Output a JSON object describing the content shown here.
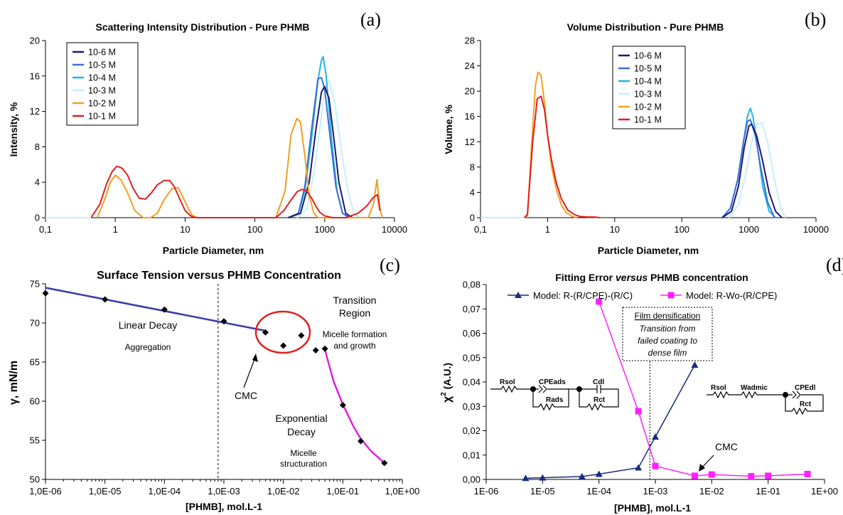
{
  "chart_data": [
    {
      "panel": "(a)",
      "type": "line",
      "title": "Scattering Intensity Distribution - Pure PHMB",
      "xlabel": "Particle Diameter, nm",
      "ylabel": "Intensity, %",
      "xscale": "log",
      "xlim": [
        0.1,
        10000
      ],
      "ylim": [
        0,
        20
      ],
      "xticks": [
        "0,1",
        "1",
        "10",
        "100",
        "1000",
        "10000"
      ],
      "yticks": [
        "0",
        "4",
        "8",
        "12",
        "16",
        "20"
      ],
      "legend_position": "top-left",
      "series": [
        {
          "name": "10-6 M",
          "color": "#1a1a6e",
          "x": [
            300,
            450,
            600,
            750,
            900,
            1000,
            1150,
            1350,
            1600,
            2000,
            2500
          ],
          "y": [
            0,
            0.5,
            4,
            10,
            14.2,
            14.8,
            13.5,
            9,
            4,
            0.5,
            0
          ]
        },
        {
          "name": "10-5 M",
          "color": "#3a6fd8",
          "x": [
            300,
            420,
            520,
            650,
            800,
            900,
            1000,
            1200,
            1450,
            1800,
            2300
          ],
          "y": [
            0,
            0.5,
            3.5,
            10,
            15.7,
            15.8,
            14.5,
            9,
            3.5,
            0.5,
            0
          ]
        },
        {
          "name": "10-4 M",
          "color": "#1fb4e6",
          "x": [
            300,
            420,
            520,
            650,
            800,
            900,
            950,
            1050,
            1250,
            1500,
            1800,
            2200
          ],
          "y": [
            0,
            0.5,
            3,
            9,
            15.5,
            17.8,
            18.2,
            16,
            9,
            3,
            0.5,
            0
          ]
        },
        {
          "name": "10-3 M",
          "color": "#c6efff",
          "x": [
            400,
            550,
            700,
            850,
            1000,
            1150,
            1400,
            1700,
            2100,
            2600,
            3200
          ],
          "y": [
            0,
            1,
            5,
            10,
            14.5,
            15.5,
            13,
            8,
            3.5,
            0.5,
            0
          ]
        },
        {
          "name": "10-2 M",
          "color": "#f0a020",
          "x": [
            0.55,
            0.7,
            0.85,
            1.0,
            1.2,
            1.5,
            1.9,
            2.5,
            3.2,
            4,
            5,
            6.5,
            8,
            10,
            12.5,
            15,
            200,
            270,
            330,
            400,
            450,
            520,
            600,
            700,
            800,
            900,
            4200,
            5000,
            5600,
            6200,
            6700
          ],
          "y": [
            0,
            2,
            4,
            4.8,
            4.3,
            2.8,
            0.8,
            0,
            0,
            0.5,
            2,
            3.3,
            3.4,
            1.8,
            0.3,
            0,
            0,
            3,
            9.4,
            11.2,
            10.8,
            7,
            2.5,
            0.5,
            0,
            0,
            0,
            1.5,
            4.3,
            1,
            0
          ]
        },
        {
          "name": "10-1 M",
          "color": "#e02020",
          "x": [
            0.45,
            0.6,
            0.75,
            0.9,
            1.05,
            1.25,
            1.5,
            1.8,
            2.2,
            2.7,
            3.3,
            4,
            5,
            6,
            7,
            8.5,
            10,
            12,
            14,
            16,
            200,
            260,
            330,
            400,
            470,
            550,
            650,
            750,
            850,
            1000,
            1300,
            2000,
            3000,
            4000,
            5000,
            5700,
            6200
          ],
          "y": [
            0,
            1.5,
            3.8,
            5.2,
            5.8,
            5.6,
            4.8,
            3.3,
            2.2,
            2.1,
            2.8,
            3.7,
            4.2,
            4.2,
            3.5,
            2,
            0.8,
            0.2,
            0,
            0,
            0,
            0.8,
            2,
            2.9,
            3.2,
            3,
            2.2,
            1.3,
            0.6,
            0.2,
            0,
            0,
            0.5,
            1.3,
            2.3,
            2.6,
            0.8
          ]
        }
      ]
    },
    {
      "panel": "(b)",
      "type": "line",
      "title": "Volume Distribution - Pure PHMB",
      "xlabel": "Particle Diameter, nm",
      "ylabel": "Volume, %",
      "xscale": "log",
      "xlim": [
        0.1,
        10000
      ],
      "ylim": [
        0,
        28
      ],
      "xticks": [
        "0,1",
        "1",
        "10",
        "100",
        "1000",
        "10000"
      ],
      "yticks": [
        "0",
        "4",
        "8",
        "12",
        "16",
        "20",
        "24",
        "28"
      ],
      "legend_position": "top-center",
      "series": [
        {
          "name": "10-6 M",
          "color": "#1a1a6e",
          "x": [
            400,
            550,
            700,
            850,
            1000,
            1100,
            1300,
            1600,
            2000,
            2500,
            3100
          ],
          "y": [
            0,
            1,
            5,
            11,
            14.5,
            14.8,
            13,
            9,
            4,
            1,
            0
          ]
        },
        {
          "name": "10-5 M",
          "color": "#3a6fd8",
          "x": [
            400,
            530,
            680,
            830,
            950,
            1050,
            1250,
            1500,
            1900,
            2400
          ],
          "y": [
            0,
            1.5,
            6,
            12,
            15.2,
            15.5,
            13,
            8,
            2.5,
            0
          ]
        },
        {
          "name": "10-4 M",
          "color": "#1fb4e6",
          "x": [
            400,
            530,
            680,
            830,
            950,
            1050,
            1150,
            1350,
            1600,
            2000,
            2500
          ],
          "y": [
            0,
            1.5,
            6,
            12,
            16,
            17.3,
            16,
            11,
            5,
            1,
            0
          ]
        },
        {
          "name": "10-3 M",
          "color": "#c6efff",
          "x": [
            500,
            700,
            900,
            1100,
            1300,
            1550,
            1900,
            2400,
            3000,
            3500
          ],
          "y": [
            0,
            2,
            7,
            12,
            14.8,
            15,
            12,
            6,
            1.5,
            0
          ]
        },
        {
          "name": "10-2 M",
          "color": "#f0a020",
          "x": [
            0.5,
            0.58,
            0.66,
            0.72,
            0.8,
            0.9,
            1.0,
            1.15,
            1.35,
            1.6,
            1.9,
            2.3,
            2.7
          ],
          "y": [
            0,
            12,
            21,
            23,
            22.5,
            18,
            13,
            8,
            4.5,
            2,
            0.8,
            0.2,
            0
          ]
        },
        {
          "name": "10-1 M",
          "color": "#e02020",
          "x": [
            0.45,
            0.5,
            0.6,
            0.7,
            0.8,
            0.9,
            1.0,
            1.15,
            1.35,
            1.6,
            2.0,
            2.5,
            3,
            4,
            5,
            6
          ],
          "y": [
            0,
            0.5,
            12,
            18.8,
            19.2,
            17,
            13,
            9,
            5.5,
            3,
            1.2,
            0.5,
            0.2,
            0.1,
            0.1,
            0
          ]
        }
      ]
    },
    {
      "panel": "(c)",
      "type": "scatter",
      "title": "Surface Tension versus PHMB Concentration",
      "xlabel": "[PHMB], mol.L-1",
      "ylabel": "γ, mN/m",
      "xscale": "log",
      "xlim": [
        1e-06,
        1
      ],
      "ylim": [
        50,
        75
      ],
      "xticks": [
        "1,0E-06",
        "1,0E-05",
        "1,0E-04",
        "1,0E-03",
        "1,0E-02",
        "1,0E-01",
        "1,0E+00"
      ],
      "yticks": [
        "50",
        "55",
        "60",
        "65",
        "70",
        "75"
      ],
      "points": {
        "x": [
          1e-06,
          1e-05,
          0.0001,
          0.001,
          0.005,
          0.01,
          0.02,
          0.035,
          0.05,
          0.1,
          0.2,
          0.5
        ],
        "y": [
          73.8,
          73.0,
          71.7,
          70.2,
          68.8,
          67.1,
          68.4,
          66.5,
          66.7,
          59.5,
          54.9,
          52.1
        ]
      },
      "fits": [
        {
          "name": "linear",
          "color": "#3a3aa8",
          "x": [
            1e-06,
            0.005
          ],
          "y": [
            74.5,
            69.0
          ]
        },
        {
          "name": "exponential",
          "color": "#e020e0",
          "x": [
            0.05,
            0.07,
            0.1,
            0.15,
            0.2,
            0.3,
            0.5
          ],
          "y": [
            66.6,
            62.5,
            59.6,
            56.8,
            55.2,
            53.6,
            52.1
          ]
        }
      ],
      "cmc_line_x": 0.0008,
      "annotations": {
        "linear_decay": "Linear Decay",
        "aggregation": "Aggregation",
        "transition_1": "Transition",
        "transition_2": "Region",
        "micelle_formation_1": "Micelle formation",
        "micelle_formation_2": "and growth",
        "cmc": "CMC",
        "exponential_1": "Exponential",
        "exponential_2": "Decay",
        "micelle_struct_1": "Micelle",
        "micelle_struct_2": "structuration"
      }
    },
    {
      "panel": "(d)",
      "type": "line",
      "title_part1": "Fitting Error ",
      "title_part2": "versus",
      "title_part3": " PHMB concentration",
      "xlabel": "[PHMB], mol.L-1",
      "ylabel": "χ",
      "ylabel_sup": "2",
      "ylabel_rest": " (A.U.)",
      "xscale": "log",
      "xlim": [
        1e-06,
        1
      ],
      "ylim": [
        0,
        0.08
      ],
      "xticks": [
        "1E-06",
        "1E-05",
        "1E-04",
        "1E-03",
        "1E-02",
        "1E-01",
        "1E+00"
      ],
      "yticks": [
        "0,00",
        "0,01",
        "0,02",
        "0,03",
        "0,04",
        "0,05",
        "0,06",
        "0,07",
        "0,08"
      ],
      "series": [
        {
          "name": "Model: R-(R/CPE)-(R/C)",
          "color": "#1a2a80",
          "marker": "triangle",
          "x": [
            5e-06,
            1e-05,
            5e-05,
            0.0001,
            0.0005,
            0.001,
            0.005
          ],
          "y": [
            0.0005,
            0.0007,
            0.0012,
            0.0022,
            0.0048,
            0.0175,
            0.047
          ]
        },
        {
          "name": "Model: R-Wo-(R/CPE)",
          "color": "#ff20ff",
          "marker": "square",
          "x": [
            0.0001,
            0.0005,
            0.001,
            0.005,
            0.01,
            0.05,
            0.1,
            0.5
          ],
          "y": [
            0.073,
            0.028,
            0.0055,
            0.0015,
            0.002,
            0.0013,
            0.0015,
            0.0022
          ]
        }
      ],
      "cmc_line_x": 0.0008,
      "annotations": {
        "film_1": "Film densification",
        "film_2": "Transition from",
        "film_3": "failed coating to",
        "film_4": "dense film",
        "cmc": "CMC",
        "circ1_rsol": "Rsol",
        "circ1_cpeads": "CPEads",
        "circ1_rads": "Rads",
        "circ1_cdl": "Cdl",
        "circ1_rct": "Rct",
        "circ2_rsol": "Rsol",
        "circ2_wadmic": "Wadmic",
        "circ2_cpedl": "CPEdl",
        "circ2_rct": "Rct"
      }
    }
  ]
}
